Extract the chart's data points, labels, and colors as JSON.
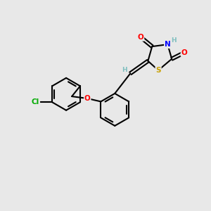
{
  "bg_color": "#e8e8e8",
  "bond_color": "#000000",
  "atom_colors": {
    "S": "#c8a000",
    "N": "#0000ff",
    "O": "#ff0000",
    "Cl": "#00aa00",
    "H": "#7fbfbf",
    "C": "#000000"
  }
}
